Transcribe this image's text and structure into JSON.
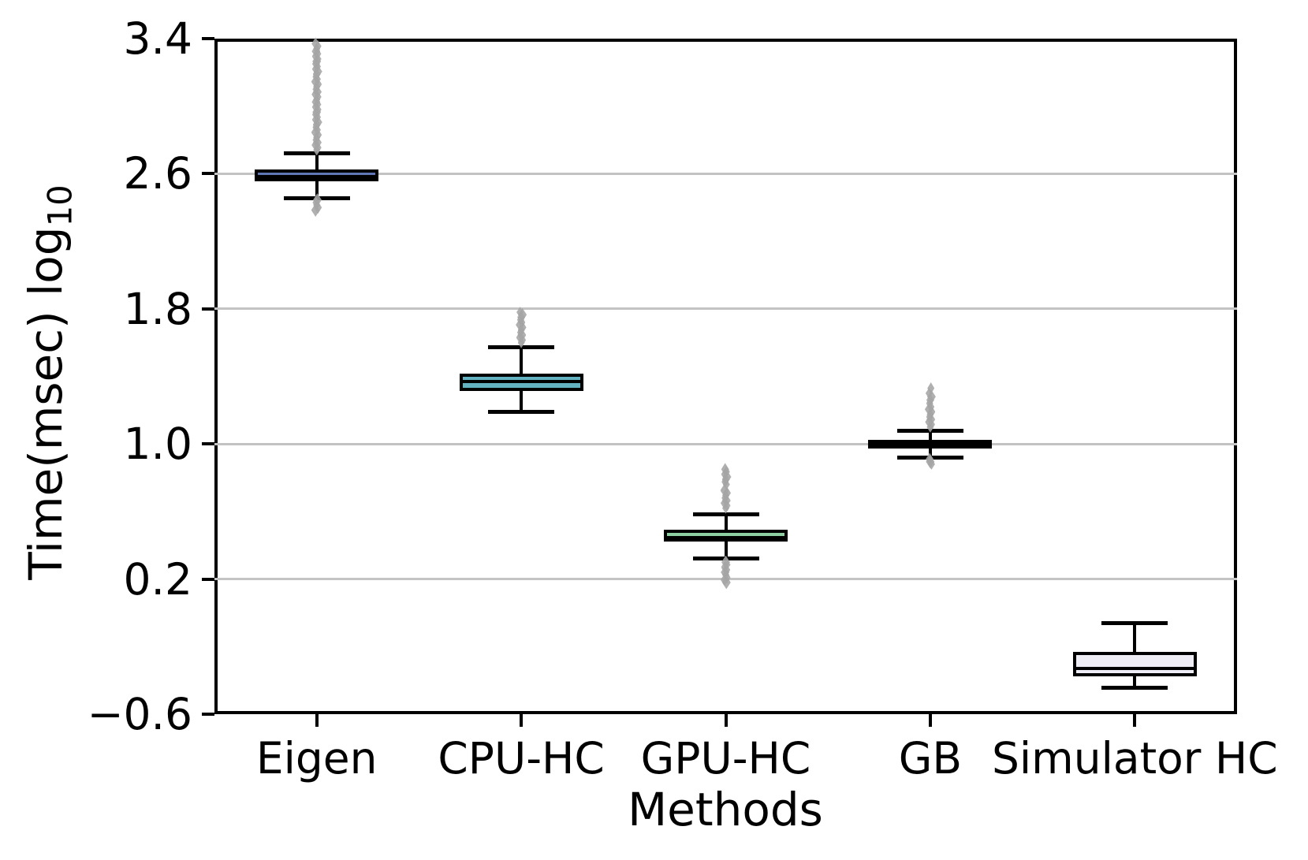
{
  "figure": {
    "ylabel_prefix": "Time(msec) log",
    "ylabel_subscript": "10",
    "xlabel": "Methods"
  },
  "chart_data": {
    "type": "box",
    "title": "",
    "xlabel": "Methods",
    "ylabel": "Time(msec) log10",
    "ylim": [
      -0.6,
      3.4
    ],
    "yticks": [
      {
        "value": 3.4,
        "label": "3.4"
      },
      {
        "value": 2.6,
        "label": "2.6"
      },
      {
        "value": 1.8,
        "label": "1.8"
      },
      {
        "value": 1.0,
        "label": "1.0"
      },
      {
        "value": 0.2,
        "label": "0.2"
      },
      {
        "value": -0.6,
        "label": "−0.6"
      }
    ],
    "gridline_values": [
      2.6,
      1.8,
      1.0,
      0.2
    ],
    "grid": "horizontal",
    "legend": "none",
    "categories": [
      "Eigen",
      "CPU-HC",
      "GPU-HC",
      "GB",
      "Simulator HC"
    ],
    "colors": {
      "box_edge": "#000000",
      "median": "#000000",
      "whisker": "#000000",
      "outlier": "#a5a5a5",
      "gridline": "#c3c3c3",
      "background": "#ffffff"
    },
    "series": [
      {
        "label": "Eigen",
        "fill": "#5f77b4",
        "q1": 2.555,
        "median": 2.585,
        "q3": 2.625,
        "whisker_low": 2.455,
        "whisker_high": 2.72,
        "outliers_high": [
          2.74,
          2.755,
          2.77,
          2.785,
          2.8,
          2.815,
          2.83,
          2.845,
          2.86,
          2.875,
          2.89,
          2.905,
          2.92,
          2.935,
          2.95,
          2.965,
          2.98,
          2.995,
          3.01,
          3.025,
          3.04,
          3.055,
          3.07,
          3.085,
          3.1,
          3.115,
          3.13,
          3.145,
          3.16,
          3.175,
          3.19,
          3.205,
          3.22,
          3.235,
          3.25,
          3.265,
          3.28,
          3.295,
          3.31,
          3.325,
          3.34,
          3.355,
          3.37
        ],
        "outliers_low": [
          2.445,
          2.43,
          2.415,
          2.4,
          2.385
        ]
      },
      {
        "label": "CPU-HC",
        "fill": "#62b2c1",
        "q1": 1.315,
        "median": 1.37,
        "q3": 1.415,
        "whisker_low": 1.19,
        "whisker_high": 1.575,
        "outliers_high": [
          1.6,
          1.615,
          1.63,
          1.645,
          1.66,
          1.675,
          1.69,
          1.705,
          1.72,
          1.735,
          1.75,
          1.765,
          1.78
        ],
        "outliers_low": []
      },
      {
        "label": "GPU-HC",
        "fill": "#8fd0a2",
        "q1": 0.42,
        "median": 0.445,
        "q3": 0.49,
        "whisker_low": 0.32,
        "whisker_high": 0.585,
        "outliers_high": [
          0.62,
          0.635,
          0.65,
          0.665,
          0.68,
          0.695,
          0.71,
          0.725,
          0.76,
          0.775,
          0.79,
          0.805,
          0.82,
          0.835,
          0.85
        ],
        "outliers_low": [
          0.3,
          0.285,
          0.27,
          0.255,
          0.24,
          0.225,
          0.21,
          0.195,
          0.18
        ]
      },
      {
        "label": "GB",
        "fill": "#7a4fa8",
        "q1": 0.975,
        "median": 1.0,
        "q3": 1.025,
        "whisker_low": 0.92,
        "whisker_high": 1.08,
        "outliers_high": [
          1.1,
          1.115,
          1.13,
          1.145,
          1.16,
          1.175,
          1.19,
          1.205,
          1.22,
          1.24,
          1.26,
          1.28,
          1.3,
          1.33
        ],
        "outliers_low": [
          0.91,
          0.895,
          0.88
        ]
      },
      {
        "label": "Simulator HC",
        "fill": "#eeedf6",
        "q1": -0.375,
        "median": -0.33,
        "q3": -0.23,
        "whisker_low": -0.445,
        "whisker_high": -0.06,
        "outliers_high": [],
        "outliers_low": []
      }
    ]
  }
}
